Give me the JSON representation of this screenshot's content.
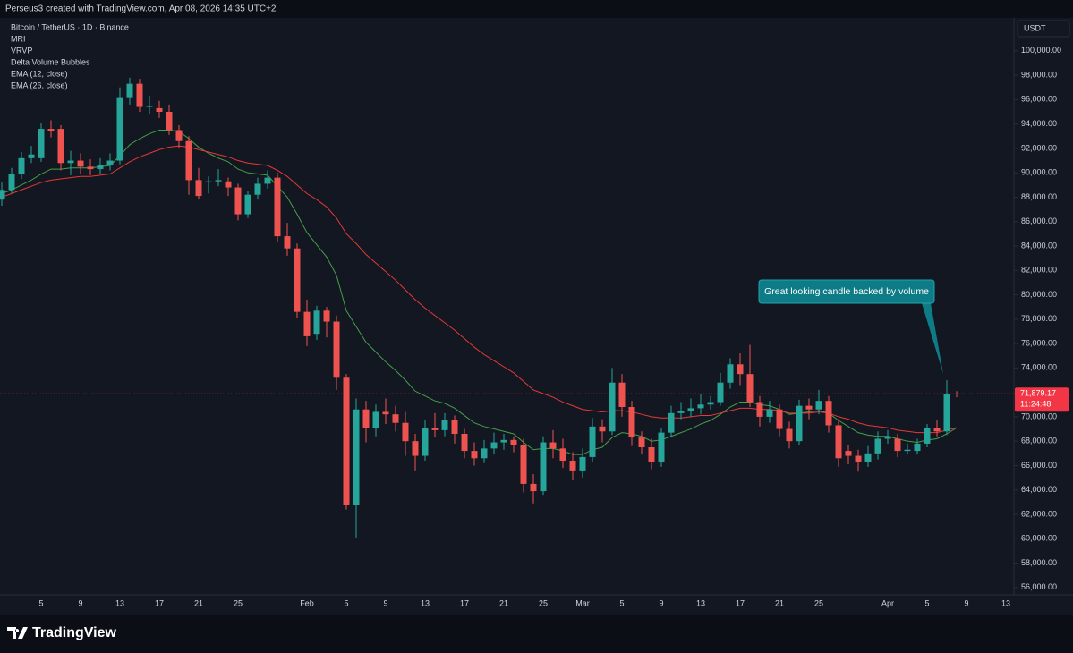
{
  "header": "Perseus3 created with TradingView.com, Apr 08, 2026 14:35 UTC+2",
  "brand": "TradingView",
  "chart_data": {
    "type": "candlestick",
    "title": "Bitcoin / TetherUS · 1D · Binance",
    "indicators": [
      "MRI",
      "VRVP",
      "Delta Volume Bubbles"
    ],
    "currency": "USDT",
    "categories": [
      null,
      null,
      null,
      null,
      "5",
      null,
      null,
      null,
      "9",
      null,
      null,
      null,
      "13",
      null,
      null,
      null,
      "17",
      null,
      null,
      null,
      "21",
      null,
      null,
      null,
      "25",
      null,
      null,
      null,
      null,
      null,
      null,
      "Feb",
      null,
      null,
      null,
      "5",
      null,
      null,
      null,
      "9",
      null,
      null,
      null,
      "13",
      null,
      null,
      null,
      "17",
      null,
      null,
      null,
      "21",
      null,
      null,
      null,
      "25",
      null,
      null,
      null,
      "Mar",
      null,
      null,
      null,
      "5",
      null,
      null,
      null,
      "9",
      null,
      null,
      null,
      "13",
      null,
      null,
      null,
      "17",
      null,
      null,
      null,
      "21",
      null,
      null,
      null,
      "25",
      null,
      null,
      null,
      null,
      null,
      null,
      "Apr",
      null,
      null,
      null,
      "5",
      null,
      null,
      null,
      "9",
      null,
      null,
      null,
      "13"
    ],
    "open": [
      87800,
      88600,
      89900,
      91200,
      91200,
      93600,
      93600,
      90800,
      91000,
      90500,
      90300,
      90600,
      91000,
      96200,
      97300,
      95400,
      95300,
      95000,
      93500,
      92600,
      89400,
      89300,
      89300,
      89300,
      88800,
      86600,
      88200,
      89100,
      89600,
      84800,
      83800,
      78600,
      76800,
      78700,
      77800,
      73200,
      62800,
      70600,
      69100,
      70400,
      70200,
      69500,
      68000,
      66800,
      69100,
      68900,
      69700,
      68600,
      67200,
      66600,
      67400,
      67900,
      68100,
      67700,
      64500,
      63900,
      67900,
      67400,
      66400,
      65600,
      66700,
      69200,
      68800,
      72800,
      70800,
      68300,
      67500,
      66300,
      68700,
      70300,
      70500,
      70700,
      71000,
      71200,
      72800,
      74300,
      73500,
      71200,
      70000,
      70600,
      69000,
      68000,
      70900,
      70600,
      71300,
      69300,
      67200,
      66800,
      66300,
      67000,
      68200,
      68200,
      67200,
      67200,
      67800,
      69100,
      68800,
      71900,
      null,
      null,
      null,
      null,
      null
    ],
    "high": [
      89200,
      90400,
      91700,
      92200,
      94100,
      94300,
      93900,
      91800,
      91600,
      91100,
      91200,
      91600,
      97000,
      97800,
      97700,
      96300,
      95900,
      95600,
      93900,
      93000,
      90400,
      89700,
      90300,
      89600,
      89100,
      88500,
      89600,
      90200,
      90000,
      85900,
      84200,
      79600,
      79100,
      79000,
      78300,
      73500,
      71500,
      71300,
      71000,
      71500,
      70900,
      70400,
      68600,
      69700,
      70300,
      70300,
      70100,
      69000,
      67900,
      68100,
      68700,
      68600,
      68400,
      68200,
      65300,
      68400,
      68900,
      68200,
      67100,
      67400,
      69900,
      69800,
      74000,
      73500,
      71300,
      68800,
      68200,
      69100,
      70900,
      71200,
      71500,
      71900,
      71700,
      73600,
      74800,
      75200,
      75900,
      71700,
      71300,
      71000,
      69600,
      71400,
      71500,
      72200,
      71700,
      69800,
      67700,
      67300,
      67600,
      68800,
      68900,
      68600,
      67800,
      68200,
      69400,
      69700,
      73000,
      72100,
      null,
      null,
      null,
      null,
      null
    ],
    "low": [
      87300,
      88300,
      89500,
      90800,
      90900,
      92900,
      90200,
      89800,
      89900,
      89800,
      89900,
      90200,
      90700,
      95600,
      95000,
      94800,
      94500,
      93100,
      92000,
      88200,
      87800,
      88300,
      88900,
      88100,
      86100,
      86300,
      87800,
      88700,
      84300,
      83200,
      78100,
      75800,
      76300,
      76500,
      72200,
      62400,
      60100,
      67900,
      68400,
      69400,
      68800,
      66800,
      65600,
      66400,
      68300,
      68400,
      67800,
      66600,
      66000,
      66200,
      66900,
      67300,
      67100,
      63800,
      62900,
      63600,
      66600,
      65800,
      64800,
      65000,
      66300,
      67900,
      68500,
      70000,
      67600,
      66900,
      65700,
      65900,
      68300,
      69800,
      70000,
      70200,
      70600,
      70900,
      72300,
      72600,
      70800,
      69200,
      69500,
      68400,
      67400,
      67700,
      69800,
      70200,
      68700,
      65900,
      66100,
      65500,
      65900,
      66500,
      67800,
      66700,
      66900,
      66900,
      67500,
      68400,
      68500,
      71600,
      null,
      null,
      null,
      null,
      null
    ],
    "close": [
      88600,
      89900,
      91200,
      91500,
      93600,
      93400,
      90800,
      91000,
      90500,
      90300,
      90600,
      91000,
      96200,
      97300,
      95400,
      95500,
      95000,
      93500,
      92600,
      89400,
      88100,
      89300,
      89400,
      88800,
      86600,
      88200,
      89100,
      89600,
      84800,
      83800,
      78600,
      76600,
      78700,
      77800,
      73200,
      62800,
      70600,
      69100,
      70400,
      70200,
      69500,
      68000,
      66800,
      69100,
      68900,
      69700,
      68600,
      67200,
      66600,
      67400,
      67900,
      68100,
      67700,
      64500,
      63900,
      67900,
      67400,
      66400,
      65600,
      66700,
      69200,
      68800,
      72800,
      70800,
      68300,
      67500,
      66300,
      68700,
      70300,
      70500,
      70700,
      71000,
      71200,
      72800,
      74300,
      73500,
      71200,
      70000,
      70600,
      69000,
      68000,
      70900,
      70600,
      71300,
      69300,
      66600,
      66800,
      66300,
      67000,
      68200,
      68400,
      67200,
      67300,
      67800,
      69100,
      68800,
      71900,
      71879.17,
      null,
      null,
      null,
      null,
      null
    ],
    "up_color": "#26a69a",
    "down_color": "#ef5350",
    "series": [
      {
        "name": "EMA (12, close)",
        "color": "#43a047",
        "values": [
          88300,
          88600,
          89000,
          89400,
          89900,
          90300,
          90300,
          90400,
          90400,
          90400,
          90500,
          90600,
          91400,
          92300,
          92800,
          93200,
          93500,
          93500,
          93400,
          92800,
          92100,
          91600,
          91200,
          90900,
          90300,
          90000,
          89900,
          89800,
          88900,
          88000,
          86600,
          85100,
          84100,
          83100,
          81600,
          78700,
          77400,
          76100,
          75300,
          74500,
          73800,
          73000,
          72100,
          71700,
          71300,
          71100,
          70700,
          70100,
          69500,
          69200,
          69000,
          68800,
          68600,
          67900,
          67300,
          67400,
          67400,
          67200,
          66900,
          66900,
          67300,
          67500,
          68300,
          68700,
          68600,
          68400,
          68000,
          68100,
          68400,
          68700,
          69000,
          69400,
          69700,
          70200,
          70800,
          71200,
          71200,
          71000,
          70900,
          70600,
          70200,
          70300,
          70400,
          70500,
          70300,
          69700,
          69200,
          68700,
          68500,
          68400,
          68400,
          68200,
          68000,
          67900,
          68100,
          68200,
          68600,
          69100,
          null,
          null,
          null,
          null,
          null
        ]
      },
      {
        "name": "EMA (26, close)",
        "color": "#e53935",
        "values": [
          88000,
          88300,
          88600,
          88900,
          89200,
          89400,
          89500,
          89600,
          89700,
          89700,
          89800,
          89900,
          90400,
          90900,
          91300,
          91600,
          91900,
          92100,
          92200,
          92100,
          91900,
          91700,
          91500,
          91300,
          91000,
          90800,
          90700,
          90600,
          90200,
          89700,
          89000,
          88300,
          87800,
          87200,
          86300,
          85000,
          84200,
          83300,
          82600,
          81900,
          81200,
          80400,
          79600,
          78900,
          78300,
          77700,
          77100,
          76400,
          75700,
          75100,
          74600,
          74100,
          73600,
          72900,
          72200,
          71900,
          71600,
          71200,
          70900,
          70600,
          70500,
          70400,
          70500,
          70500,
          70400,
          70200,
          70000,
          69900,
          69900,
          69900,
          70000,
          70100,
          70100,
          70300,
          70500,
          70700,
          70700,
          70600,
          70600,
          70500,
          70300,
          70300,
          70300,
          70400,
          70300,
          70000,
          69800,
          69500,
          69300,
          69200,
          69100,
          68900,
          68800,
          68700,
          68700,
          68700,
          68900,
          69100,
          null,
          null,
          null,
          null,
          null
        ]
      }
    ],
    "last_price": {
      "value": 71879.17,
      "label": "71,879.17",
      "countdown": "11:24:48"
    },
    "annotation": "Great looking candle backed by volume",
    "ylim": [
      55400,
      102700
    ],
    "yticks": [
      {
        "value": 56000,
        "label": "56,000.00"
      },
      {
        "value": 58000,
        "label": "58,000.00"
      },
      {
        "value": 60000,
        "label": "60,000.00"
      },
      {
        "value": 62000,
        "label": "62,000.00"
      },
      {
        "value": 64000,
        "label": "64,000.00"
      },
      {
        "value": 66000,
        "label": "66,000.00"
      },
      {
        "value": 68000,
        "label": "68,000.00"
      },
      {
        "value": 70000,
        "label": "70,000.00"
      },
      {
        "value": 72000,
        "label": "72,000.00"
      },
      {
        "value": 74000,
        "label": "74,000.00"
      },
      {
        "value": 76000,
        "label": "76,000.00"
      },
      {
        "value": 78000,
        "label": "78,000.00"
      },
      {
        "value": 80000,
        "label": "80,000.00"
      },
      {
        "value": 82000,
        "label": "82,000.00"
      },
      {
        "value": 84000,
        "label": "84,000.00"
      },
      {
        "value": 86000,
        "label": "86,000.00"
      },
      {
        "value": 88000,
        "label": "88,000.00"
      },
      {
        "value": 90000,
        "label": "90,000.00"
      },
      {
        "value": 92000,
        "label": "92,000.00"
      },
      {
        "value": 94000,
        "label": "94,000.00"
      },
      {
        "value": 96000,
        "label": "96,000.00"
      },
      {
        "value": 98000,
        "label": "98,000.00"
      },
      {
        "value": 100000,
        "label": "100,000.00"
      }
    ],
    "grid": false
  }
}
